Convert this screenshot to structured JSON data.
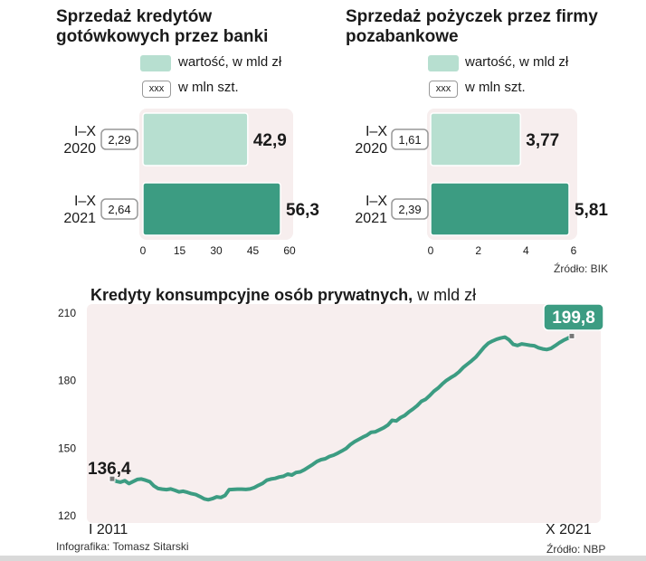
{
  "left_chart": {
    "title_line1": "Sprzedaż kredytów",
    "title_line2": "gotówkowych przez banki",
    "legend_value": "wartość, w mld zł",
    "legend_count_box": "xxx",
    "legend_count": "w mln szt.",
    "source": ""
  },
  "right_chart": {
    "title_line1": "Sprzedaż pożyczek przez firmy",
    "title_line2": "pozabankowe",
    "legend_value": "wartość, w mld zł",
    "legend_count_box": "xxx",
    "legend_count": "w mln szt.",
    "source": "Źródło: BIK"
  },
  "line_chart_header": {
    "title_bold": "Kredyty konsumpcyjne osób prywatnych,",
    "title_rest": " w mld zł",
    "source": "Źródło: NBP"
  },
  "credit": "Infografika: Tomasz Sitarski",
  "colors": {
    "bar_2020": "#b7dfd0",
    "bar_2021": "#3c9c82",
    "plot_bg": "#f7eeee",
    "line": "#3c9c82",
    "count_box_border": "#999999"
  },
  "chart_data": [
    {
      "type": "bar",
      "orientation": "horizontal",
      "categories": [
        "I–X 2020",
        "I–X 2021"
      ],
      "series": [
        {
          "name": "wartość, w mld zł",
          "values": [
            42.9,
            56.3
          ]
        },
        {
          "name": "w mln szt.",
          "values": [
            2.29,
            2.64
          ]
        }
      ],
      "value_labels": [
        "42,9",
        "56,3"
      ],
      "count_labels": [
        "2,29",
        "2,64"
      ],
      "xlim": [
        0,
        60
      ],
      "xticks": [
        "0",
        "15",
        "30",
        "45",
        "60"
      ]
    },
    {
      "type": "bar",
      "orientation": "horizontal",
      "categories": [
        "I–X 2020",
        "I–X 2021"
      ],
      "series": [
        {
          "name": "wartość, w mld zł",
          "values": [
            3.77,
            5.81
          ]
        },
        {
          "name": "w mln szt.",
          "values": [
            1.61,
            2.39
          ]
        }
      ],
      "value_labels": [
        "3,77",
        "5,81"
      ],
      "count_labels": [
        "1,61",
        "2,39"
      ],
      "xlim": [
        0,
        6
      ],
      "xticks": [
        "0",
        "2",
        "4",
        "6"
      ]
    },
    {
      "type": "line",
      "x_start_label": "I 2011",
      "x_end_label": "X 2021",
      "ylim": [
        120,
        210
      ],
      "yticks": [
        "210",
        "180",
        "150",
        "120"
      ],
      "start_label": "136,4",
      "end_label": "199,8",
      "values": [
        136.4,
        135.3,
        134.9,
        135.6,
        134.3,
        135.2,
        136.1,
        136.3,
        135.8,
        135.1,
        133.2,
        132.1,
        131.8,
        131.6,
        131.9,
        131.3,
        130.6,
        130.9,
        130.4,
        129.8,
        129.4,
        128.5,
        127.5,
        127.1,
        127.6,
        128.4,
        128.1,
        129.0,
        131.6,
        131.7,
        131.8,
        131.8,
        131.7,
        131.9,
        132.5,
        133.5,
        134.4,
        135.8,
        136.3,
        136.6,
        137.2,
        137.5,
        138.5,
        138.1,
        139.2,
        139.5,
        140.4,
        141.6,
        142.8,
        144.1,
        144.9,
        145.3,
        146.3,
        146.9,
        147.8,
        148.8,
        149.9,
        151.6,
        152.9,
        153.9,
        154.9,
        155.8,
        157.1,
        157.3,
        158.2,
        159.1,
        160.3,
        162.4,
        162.1,
        163.6,
        164.5,
        166.1,
        167.4,
        168.9,
        170.8,
        171.7,
        173.4,
        175.3,
        176.7,
        178.5,
        180.1,
        181.3,
        182.4,
        183.9,
        185.8,
        187.3,
        188.8,
        190.4,
        192.6,
        194.8,
        196.6,
        197.6,
        198.4,
        198.9,
        199.3,
        198.1,
        196.1,
        195.6,
        196.3,
        196.0,
        195.7,
        195.5,
        194.6,
        194.1,
        193.8,
        194.3,
        195.5,
        196.8,
        197.9,
        198.8,
        199.8
      ]
    }
  ]
}
